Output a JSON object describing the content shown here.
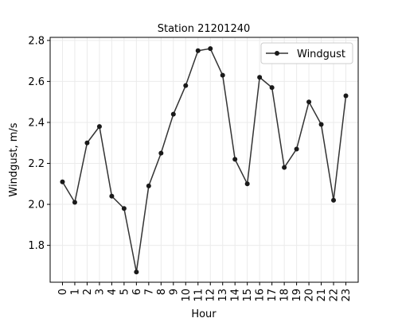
{
  "chart_data": {
    "type": "line",
    "title": "Station 21201240",
    "xlabel": "Hour",
    "ylabel": "Windgust, m/s",
    "x": [
      0,
      1,
      2,
      3,
      4,
      5,
      6,
      7,
      8,
      9,
      10,
      11,
      12,
      13,
      14,
      15,
      16,
      17,
      18,
      19,
      20,
      21,
      22,
      23
    ],
    "x_tick_labels": [
      "0",
      "1",
      "2",
      "3",
      "4",
      "5",
      "6",
      "7",
      "8",
      "9",
      "10",
      "11",
      "12",
      "13",
      "14",
      "15",
      "16",
      "17",
      "18",
      "19",
      "20",
      "21",
      "22",
      "23"
    ],
    "xlim": [
      -1,
      24
    ],
    "ylim": [
      1.62,
      2.815
    ],
    "y_ticks": [
      1.8,
      2.0,
      2.2,
      2.4,
      2.6,
      2.8
    ],
    "y_tick_labels": [
      "1.8",
      "2.0",
      "2.2",
      "2.4",
      "2.6",
      "2.8"
    ],
    "grid": true,
    "legend_position": "top-right",
    "series": [
      {
        "name": "Windgust",
        "color": "#333333",
        "marker": "circle",
        "values": [
          2.11,
          2.01,
          2.3,
          2.38,
          2.04,
          1.98,
          1.67,
          2.09,
          2.25,
          2.44,
          2.58,
          2.75,
          2.76,
          2.63,
          2.22,
          2.1,
          2.62,
          2.57,
          2.18,
          2.27,
          2.5,
          2.39,
          2.02,
          2.53
        ]
      }
    ]
  }
}
